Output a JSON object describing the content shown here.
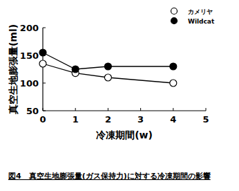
{
  "chart_data": {
    "type": "line",
    "caption": "図4　真空生地膨張量(ガス保持力)に対する冷凍期間の影響",
    "x_label": "冷凍期間(w)",
    "y_label": "真空生地膨張量(ml)",
    "x": [
      0,
      1,
      2,
      4
    ],
    "series": [
      {
        "name": "カメリヤ",
        "color": "#000000",
        "marker": "open-circle",
        "values": [
          135,
          118,
          110,
          100
        ]
      },
      {
        "name": "Wildcat",
        "color": "#000000",
        "marker": "circle",
        "values": [
          155,
          125,
          130,
          130
        ]
      }
    ],
    "xlim": [
      0,
      5
    ],
    "xticks": [
      0,
      1,
      2,
      3,
      4,
      5
    ],
    "ylim": [
      50,
      200
    ],
    "yticks": [
      50,
      100,
      150,
      200
    ],
    "grid": false,
    "legend": "upper right"
  }
}
